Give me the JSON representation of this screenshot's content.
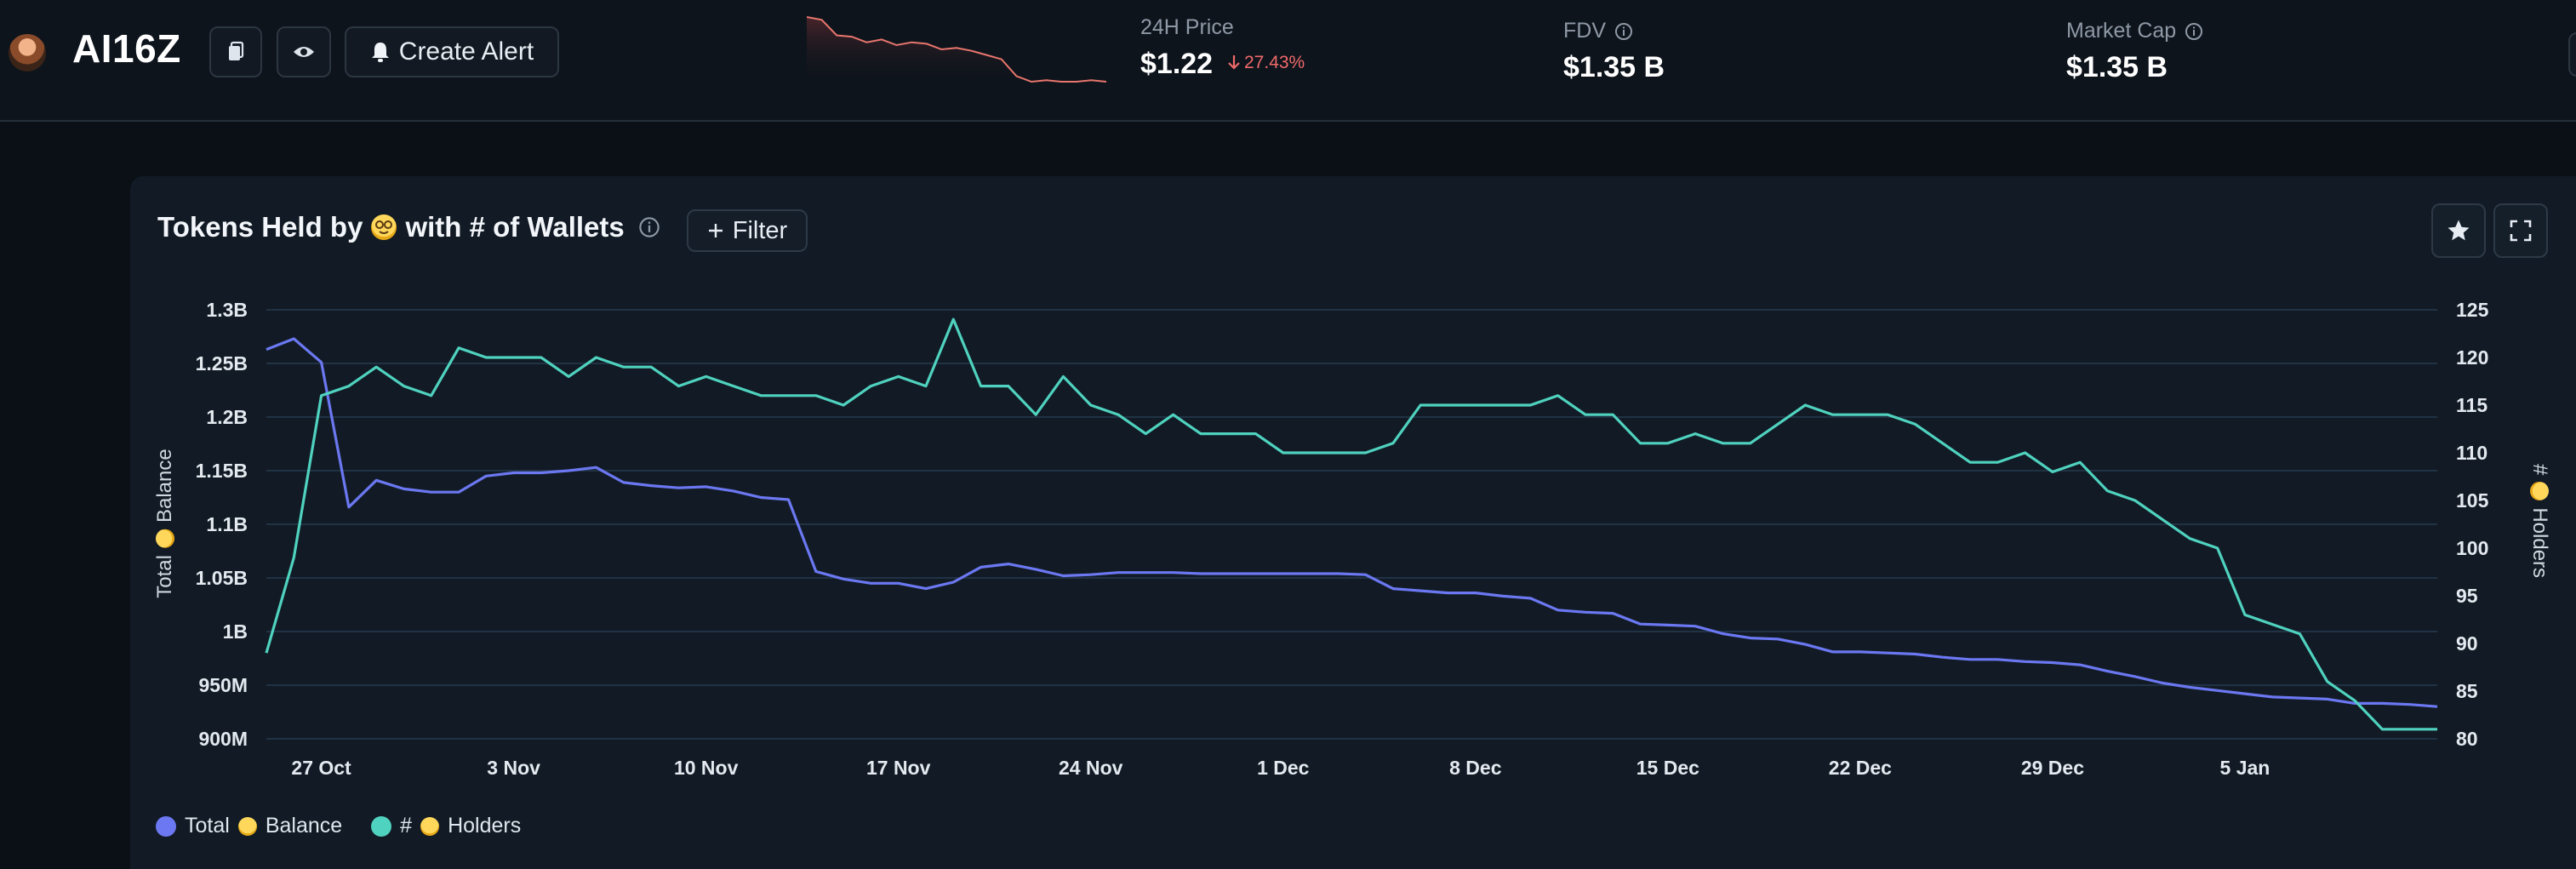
{
  "header": {
    "token_name": "AI16Z",
    "create_alert_label": "Create Alert",
    "price_label": "24H Price",
    "price_value": "$1.22",
    "price_change": "27.43%",
    "fdv_label": "FDV",
    "fdv_value": "$1.35 B",
    "mcap_label": "Market Cap",
    "mcap_value": "$1.35 B",
    "sparkline": [
      1.68,
      1.66,
      1.55,
      1.54,
      1.5,
      1.52,
      1.48,
      1.5,
      1.49,
      1.45,
      1.46,
      1.44,
      1.41,
      1.38,
      1.26,
      1.22,
      1.23,
      1.22,
      1.22,
      1.23,
      1.22
    ]
  },
  "panel": {
    "title_before": "Tokens Held by",
    "title_after": "with # of Wallets",
    "filter_label": "Filter"
  },
  "chart_data": {
    "type": "line",
    "x": [
      "2024-10-25",
      "2024-10-26",
      "2024-10-27",
      "2024-10-28",
      "2024-10-29",
      "2024-10-30",
      "2024-10-31",
      "2024-11-01",
      "2024-11-02",
      "2024-11-03",
      "2024-11-04",
      "2024-11-05",
      "2024-11-06",
      "2024-11-07",
      "2024-11-08",
      "2024-11-09",
      "2024-11-10",
      "2024-11-11",
      "2024-11-12",
      "2024-11-13",
      "2024-11-14",
      "2024-11-15",
      "2024-11-16",
      "2024-11-17",
      "2024-11-18",
      "2024-11-19",
      "2024-11-20",
      "2024-11-21",
      "2024-11-22",
      "2024-11-23",
      "2024-11-24",
      "2024-11-25",
      "2024-11-26",
      "2024-11-27",
      "2024-11-28",
      "2024-11-29",
      "2024-11-30",
      "2024-12-01",
      "2024-12-02",
      "2024-12-03",
      "2024-12-04",
      "2024-12-05",
      "2024-12-06",
      "2024-12-07",
      "2024-12-08",
      "2024-12-09",
      "2024-12-10",
      "2024-12-11",
      "2024-12-12",
      "2024-12-13",
      "2024-12-14",
      "2024-12-15",
      "2024-12-16",
      "2024-12-17",
      "2024-12-18",
      "2024-12-19",
      "2024-12-20",
      "2024-12-21",
      "2024-12-22",
      "2024-12-23",
      "2024-12-24",
      "2024-12-25",
      "2024-12-26",
      "2024-12-27",
      "2024-12-28",
      "2024-12-29",
      "2024-12-30",
      "2024-12-31",
      "2025-01-01",
      "2025-01-02",
      "2025-01-03",
      "2025-01-04",
      "2025-01-05",
      "2025-01-06",
      "2025-01-07",
      "2025-01-08",
      "2025-01-09",
      "2025-01-10",
      "2025-01-11",
      "2025-01-12"
    ],
    "x_ticks": [
      {
        "date": "2024-10-27",
        "label": "27 Oct"
      },
      {
        "date": "2024-11-03",
        "label": "3 Nov"
      },
      {
        "date": "2024-11-10",
        "label": "10 Nov"
      },
      {
        "date": "2024-11-17",
        "label": "17 Nov"
      },
      {
        "date": "2024-11-24",
        "label": "24 Nov"
      },
      {
        "date": "2024-12-01",
        "label": "1 Dec"
      },
      {
        "date": "2024-12-08",
        "label": "8 Dec"
      },
      {
        "date": "2024-12-15",
        "label": "15 Dec"
      },
      {
        "date": "2024-12-22",
        "label": "22 Dec"
      },
      {
        "date": "2024-12-29",
        "label": "29 Dec"
      },
      {
        "date": "2025-01-05",
        "label": "5 Jan"
      }
    ],
    "y_left": {
      "label": "Total",
      "label_after": "Balance",
      "min": 900000000,
      "max": 1300000000,
      "ticks": [
        {
          "v": 1300000000,
          "label": "1.3B"
        },
        {
          "v": 1250000000,
          "label": "1.25B"
        },
        {
          "v": 1200000000,
          "label": "1.2B"
        },
        {
          "v": 1150000000,
          "label": "1.15B"
        },
        {
          "v": 1100000000,
          "label": "1.1B"
        },
        {
          "v": 1050000000,
          "label": "1.05B"
        },
        {
          "v": 1000000000,
          "label": "1B"
        },
        {
          "v": 950000000,
          "label": "950M"
        },
        {
          "v": 900000000,
          "label": "900M"
        }
      ]
    },
    "y_right": {
      "label": "#",
      "label_after": "Holders",
      "min": 80,
      "max": 125,
      "ticks": [
        {
          "v": 125,
          "label": "125"
        },
        {
          "v": 120,
          "label": "120"
        },
        {
          "v": 115,
          "label": "115"
        },
        {
          "v": 110,
          "label": "110"
        },
        {
          "v": 105,
          "label": "105"
        },
        {
          "v": 100,
          "label": "100"
        },
        {
          "v": 95,
          "label": "95"
        },
        {
          "v": 90,
          "label": "90"
        },
        {
          "v": 85,
          "label": "85"
        },
        {
          "v": 80,
          "label": "80"
        }
      ]
    },
    "grid": true,
    "legend_position": "bottom-left",
    "series": [
      {
        "name": "Total",
        "name_after": "Balance",
        "color": "#6b78f2",
        "axis": "left",
        "values": [
          1263000000,
          1273000000,
          1251000000,
          1116000000,
          1141000000,
          1133000000,
          1130000000,
          1130000000,
          1145000000,
          1148000000,
          1148000000,
          1150000000,
          1153000000,
          1139000000,
          1136000000,
          1134000000,
          1135000000,
          1131000000,
          1125000000,
          1123000000,
          1056000000,
          1049000000,
          1045000000,
          1045000000,
          1040000000,
          1046000000,
          1060000000,
          1063000000,
          1058000000,
          1052000000,
          1053000000,
          1055000000,
          1055000000,
          1055000000,
          1054000000,
          1054000000,
          1054000000,
          1054000000,
          1054000000,
          1054000000,
          1053000000,
          1040000000,
          1038000000,
          1036000000,
          1036000000,
          1033000000,
          1031000000,
          1020000000,
          1018000000,
          1017000000,
          1007000000,
          1006000000,
          1005000000,
          998000000,
          994000000,
          993000000,
          988000000,
          981000000,
          981000000,
          980000000,
          979000000,
          976000000,
          974000000,
          974000000,
          972000000,
          971000000,
          969000000,
          963000000,
          958000000,
          952000000,
          948000000,
          945000000,
          942000000,
          939000000,
          938000000,
          937000000,
          933000000,
          933000000,
          932000000,
          930000000
        ]
      },
      {
        "name": "#",
        "name_after": "Holders",
        "color": "#4fd2bf",
        "axis": "right",
        "values": [
          89,
          99,
          116,
          117,
          119,
          117,
          116,
          121,
          120,
          120,
          120,
          118,
          120,
          119,
          119,
          117,
          118,
          117,
          116,
          116,
          116,
          115,
          117,
          118,
          117,
          124,
          117,
          117,
          114,
          118,
          115,
          114,
          112,
          114,
          112,
          112,
          112,
          110,
          110,
          110,
          110,
          111,
          115,
          115,
          115,
          115,
          115,
          116,
          114,
          114,
          111,
          111,
          112,
          111,
          111,
          113,
          115,
          114,
          114,
          114,
          113,
          111,
          109,
          109,
          110,
          108,
          109,
          106,
          105,
          103,
          101,
          100,
          93,
          92,
          91,
          86,
          84,
          81,
          81,
          81
        ]
      }
    ]
  }
}
